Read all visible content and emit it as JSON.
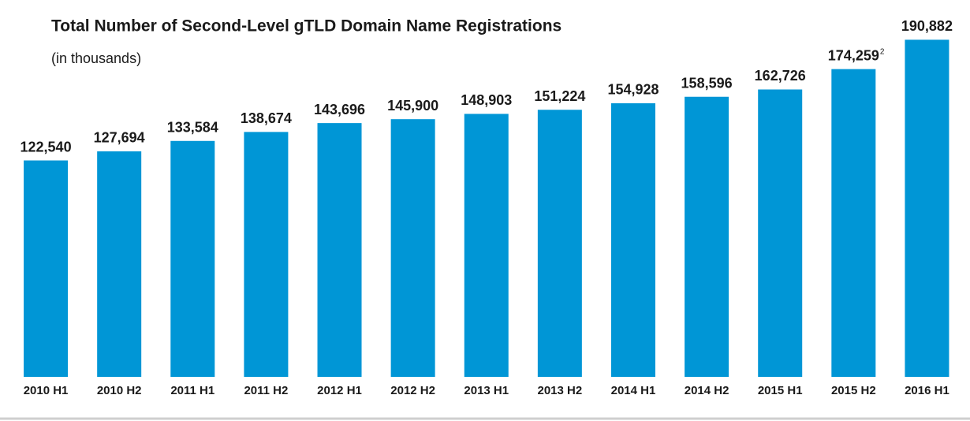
{
  "chart_data": {
    "type": "bar",
    "title": "Total Number of Second-Level gTLD Domain Name Registrations",
    "subtitle": "(in thousands)",
    "categories": [
      "2010 H1",
      "2010 H2",
      "2011 H1",
      "2011 H2",
      "2012 H1",
      "2012 H2",
      "2013 H1",
      "2013 H2",
      "2014 H1",
      "2014 H2",
      "2015 H1",
      "2015 H2",
      "2016 H1"
    ],
    "values": [
      122540,
      127694,
      133584,
      138674,
      143696,
      145900,
      148903,
      151224,
      154928,
      158596,
      162726,
      174259,
      190882
    ],
    "value_labels": [
      "122,540",
      "127,694",
      "133,584",
      "138,674",
      "143,696",
      "145,900",
      "148,903",
      "151,224",
      "154,928",
      "158,596",
      "162,726",
      "174,259",
      "190,882"
    ],
    "annotations": [
      {
        "category": "2015 H2",
        "text": "2"
      }
    ],
    "color": "#0096d6",
    "ylim": [
      0,
      200000
    ],
    "grid": false
  }
}
